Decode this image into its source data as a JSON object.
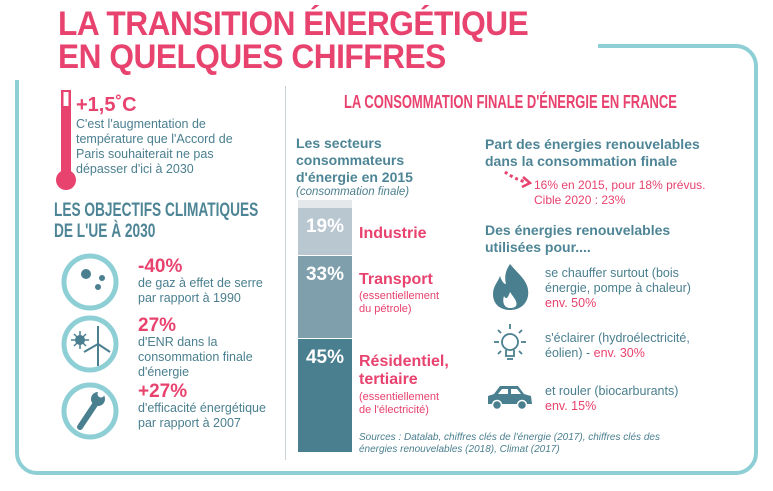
{
  "title": {
    "line1": "LA TRANSITION ÉNERGÉTIQUE",
    "line2": "EN QUELQUES CHIFFRES"
  },
  "temperature": {
    "value": "+1,5˚C",
    "text": "C'est l'augmentation de température que l'Accord de Paris souhaiterait ne pas dépasser d'ici à 2030"
  },
  "objectives": {
    "heading_line1": "LES OBJECTIFS CLIMATIQUES",
    "heading_line2": "DE L'UE À 2030",
    "items": [
      {
        "value": "-40%",
        "text": "de gaz à effet de serre par rapport à 1990",
        "icon": "molecules-icon"
      },
      {
        "value": "27%",
        "text": "d'ENR dans la consommation finale d'énergie",
        "icon": "sun-wind-turbine-icon"
      },
      {
        "value": "+27%",
        "text": "d'efficacité énergétique par rapport à 2007",
        "icon": "wrench-icon"
      }
    ]
  },
  "consumption": {
    "heading": "LA CONSOMMATION FINALE D'ÉNERGIE EN FRANCE",
    "sectors_title": "Les secteurs consommateurs d'énergie en 2015",
    "sectors_subtitle": "(consommation finale)",
    "chart_data": {
      "type": "bar",
      "stacked": true,
      "categories": [
        "Industrie",
        "Transport",
        "Résidentiel, tertiaire"
      ],
      "values": [
        19,
        33,
        45
      ],
      "labels": [
        "19%",
        "33%",
        "45%"
      ],
      "notes": [
        "",
        "(essentiellement du pétrole)",
        "(essentiellement de l'électricité)"
      ],
      "colors": [
        "#b9c7d0",
        "#7e9fab",
        "#4a7f8f"
      ],
      "remainder_color": "#e4e8ea"
    },
    "sources": "Sources : Datalab, chiffres clés de l'énergie (2017), chiffres clés des énergies renouvelables (2018), Climat (2017)"
  },
  "renewables": {
    "share_title": "Part des énergies renouvelables dans la consommation finale",
    "share_text": "16% en 2015, pour 18% prévus. Cible 2020 : 23%",
    "uses_title": "Des énergies renouvelables utilisées pour....",
    "uses": [
      {
        "text": "se chauffer surtout (bois énergie, pompe à chaleur)",
        "value": "env. 50%",
        "icon": "flame-icon"
      },
      {
        "text": "s'éclairer (hydroélectricité, éolien) -",
        "value": "env. 30%",
        "icon": "lightbulb-icon"
      },
      {
        "text": "et rouler (biocarburants)",
        "value": "env. 15%",
        "icon": "car-icon"
      }
    ]
  },
  "colors": {
    "pink": "#e8426e",
    "teal": "#4a7f8f",
    "frame": "#8ecfd6"
  }
}
